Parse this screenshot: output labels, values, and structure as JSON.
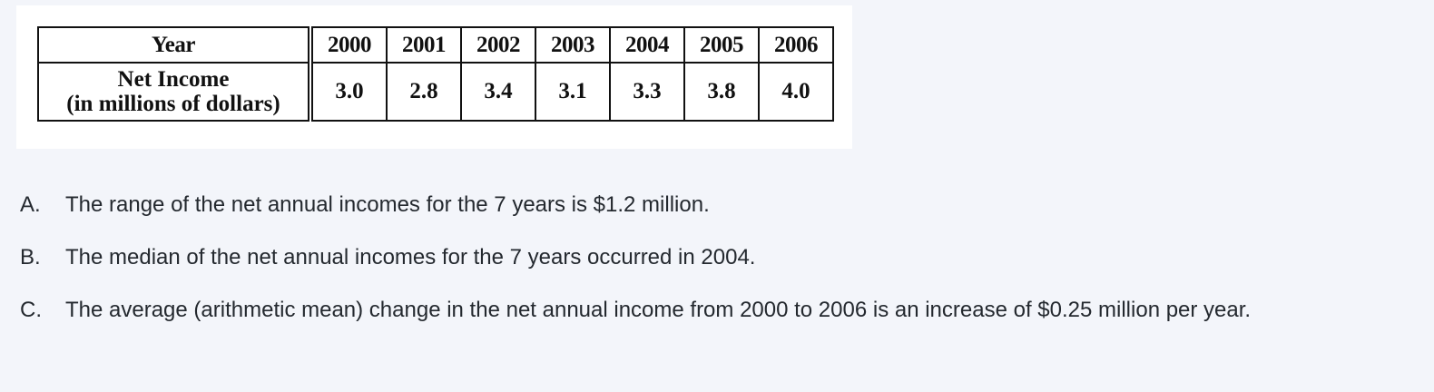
{
  "table": {
    "header_year": "Year",
    "header_income_line1": "Net Income",
    "header_income_line2": "(in millions of dollars)",
    "years": [
      "2000",
      "2001",
      "2002",
      "2003",
      "2004",
      "2005",
      "2006"
    ],
    "incomes": [
      "3.0",
      "2.8",
      "3.4",
      "3.1",
      "3.3",
      "3.8",
      "4.0"
    ]
  },
  "options": [
    {
      "letter": "A.",
      "text": "The range of the net annual incomes for the 7 years is $1.2 million."
    },
    {
      "letter": "B.",
      "text": "The median of the net annual incomes for the 7 years occurred in 2004."
    },
    {
      "letter": "C.",
      "text": "The average (arithmetic mean) change in the net annual income from 2000 to 2006 is an increase of $0.25 million per year."
    }
  ]
}
